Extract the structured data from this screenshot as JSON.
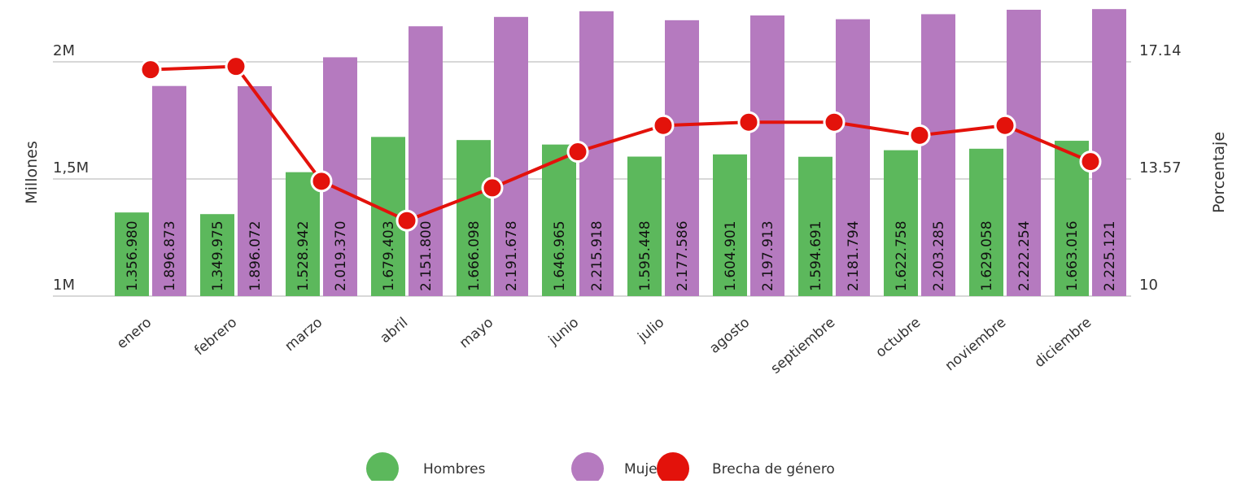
{
  "chart_data": {
    "type": "bar+line",
    "categories": [
      "enero",
      "febrero",
      "marzo",
      "abril",
      "mayo",
      "junio",
      "julio",
      "agosto",
      "septiembre",
      "octubre",
      "noviembre",
      "diciembre"
    ],
    "series": [
      {
        "name": "Hombres",
        "type": "bar",
        "axis": "left",
        "color": "#5cb85c",
        "values": [
          1356980,
          1349975,
          1528942,
          1679403,
          1666098,
          1646965,
          1595448,
          1604901,
          1594691,
          1622758,
          1629058,
          1663016
        ],
        "labels": [
          "1.356.980",
          "1.349.975",
          "1.528.942",
          "1.679.403",
          "1.666.098",
          "1.646.965",
          "1.595.448",
          "1.604.901",
          "1.594.691",
          "1.622.758",
          "1.629.058",
          "1.663.016"
        ]
      },
      {
        "name": "Mujeres",
        "type": "bar",
        "axis": "left",
        "color": "#b57abf",
        "values": [
          1896873,
          1896072,
          2019370,
          2151800,
          2191678,
          2215918,
          2177586,
          2197913,
          2181794,
          2203285,
          2222254,
          2225121
        ],
        "labels": [
          "1.896.873",
          "1.896.072",
          "2.019.370",
          "2.151.800",
          "2.191.678",
          "2.215.918",
          "2.177.586",
          "2.197.913",
          "2.181.794",
          "2.203.285",
          "2.222.254",
          "2.225.121"
        ]
      },
      {
        "name": "Brecha de género",
        "type": "line",
        "axis": "right",
        "color": "#e3120b",
        "values": [
          16.9,
          17.0,
          13.5,
          12.3,
          13.3,
          14.4,
          15.2,
          15.3,
          15.3,
          14.9,
          15.2,
          14.1
        ]
      }
    ],
    "y_left": {
      "label": "Millones",
      "ylim": [
        1000000,
        2000000
      ],
      "ticks": [
        1000000,
        1500000,
        2000000
      ],
      "tick_labels": [
        "1M",
        "1,5M",
        "2M"
      ]
    },
    "y_right": {
      "label": "Porcentaje",
      "ylim": [
        10,
        17.14
      ],
      "ticks": [
        10,
        13.57,
        17.14
      ],
      "tick_labels": [
        "10",
        "13.57",
        "17.14"
      ]
    },
    "grid": true,
    "legend": "bottom-center"
  }
}
